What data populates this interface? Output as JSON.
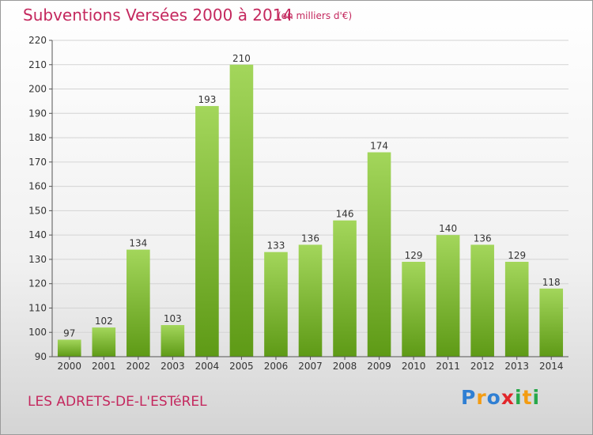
{
  "header": {
    "title": "Subventions Versées 2000 à 2014",
    "subtitle": "(en milliers d'€)"
  },
  "footer": {
    "commune": "LES ADRETS-DE-L'ESTéREL",
    "logo_text": "Proxiti",
    "logo_letters": [
      "P",
      "r",
      "o",
      "x",
      "i",
      "t",
      "i"
    ],
    "logo_colors": [
      "#2f7fd3",
      "#f39c12",
      "#2f7fd3",
      "#e2262a",
      "#27a84a",
      "#f39c12",
      "#27a84a"
    ]
  },
  "colors": {
    "bar_top": "#a3d65b",
    "bar_bottom": "#5e9a16",
    "grid": "#d4d4d4",
    "axis": "#555555",
    "text": "#333333",
    "accent": "#c4285e"
  },
  "chart_data": {
    "type": "bar",
    "categories": [
      "2000",
      "2001",
      "2002",
      "2003",
      "2004",
      "2005",
      "2006",
      "2007",
      "2008",
      "2009",
      "2010",
      "2011",
      "2012",
      "2013",
      "2014"
    ],
    "values": [
      97,
      102,
      134,
      103,
      193,
      210,
      133,
      136,
      146,
      174,
      129,
      140,
      136,
      129,
      118
    ],
    "ylim": [
      90,
      220
    ],
    "yticks": [
      90,
      100,
      110,
      120,
      130,
      140,
      150,
      160,
      170,
      180,
      190,
      200,
      210,
      220
    ],
    "grid": true,
    "data_labels": true
  }
}
